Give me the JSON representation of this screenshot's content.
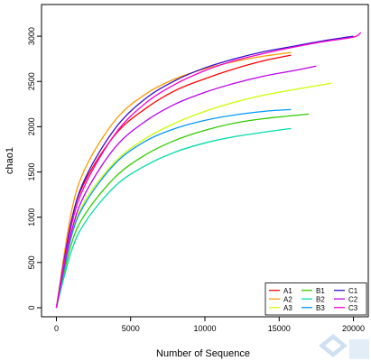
{
  "chart_data": {
    "type": "line",
    "title": "",
    "xlabel": "Number of Sequence",
    "ylabel": "chao1",
    "xlim": [
      -1000,
      21000
    ],
    "ylim": [
      -100,
      3350
    ],
    "xticks": [
      0,
      5000,
      10000,
      15000,
      20000
    ],
    "yticks": [
      0,
      500,
      1000,
      1500,
      2000,
      2500,
      3000
    ],
    "grid": false,
    "legend_position": "bottom-right",
    "legend_columns": 3,
    "series": [
      {
        "name": "A1",
        "color": "#ff0000",
        "points": [
          [
            0,
            0
          ],
          [
            1000,
            950
          ],
          [
            2000,
            1420
          ],
          [
            4000,
            1920
          ],
          [
            6000,
            2200
          ],
          [
            8000,
            2400
          ],
          [
            10000,
            2530
          ],
          [
            12000,
            2640
          ],
          [
            14000,
            2730
          ],
          [
            15800,
            2790
          ]
        ]
      },
      {
        "name": "A2",
        "color": "#ff9900",
        "points": [
          [
            0,
            0
          ],
          [
            1000,
            1050
          ],
          [
            2000,
            1560
          ],
          [
            4000,
            2080
          ],
          [
            6000,
            2360
          ],
          [
            8000,
            2530
          ],
          [
            10000,
            2640
          ],
          [
            12000,
            2720
          ],
          [
            14000,
            2780
          ],
          [
            15800,
            2820
          ]
        ]
      },
      {
        "name": "A3",
        "color": "#ccff00",
        "points": [
          [
            0,
            0
          ],
          [
            1000,
            800
          ],
          [
            2000,
            1200
          ],
          [
            4000,
            1620
          ],
          [
            6000,
            1870
          ],
          [
            8000,
            2040
          ],
          [
            10000,
            2170
          ],
          [
            12000,
            2270
          ],
          [
            14000,
            2350
          ],
          [
            16000,
            2410
          ],
          [
            18500,
            2480
          ]
        ]
      },
      {
        "name": "B1",
        "color": "#33cc00",
        "points": [
          [
            0,
            0
          ],
          [
            1000,
            700
          ],
          [
            2000,
            1050
          ],
          [
            4000,
            1450
          ],
          [
            6000,
            1690
          ],
          [
            8000,
            1850
          ],
          [
            10000,
            1960
          ],
          [
            12000,
            2040
          ],
          [
            14000,
            2090
          ],
          [
            17000,
            2140
          ]
        ]
      },
      {
        "name": "B2",
        "color": "#00ddaa",
        "points": [
          [
            0,
            0
          ],
          [
            1000,
            620
          ],
          [
            2000,
            960
          ],
          [
            4000,
            1350
          ],
          [
            6000,
            1570
          ],
          [
            8000,
            1720
          ],
          [
            10000,
            1820
          ],
          [
            12000,
            1890
          ],
          [
            14000,
            1940
          ],
          [
            15800,
            1980
          ]
        ]
      },
      {
        "name": "B3",
        "color": "#0099ff",
        "points": [
          [
            0,
            0
          ],
          [
            1000,
            780
          ],
          [
            2000,
            1170
          ],
          [
            4000,
            1600
          ],
          [
            6000,
            1840
          ],
          [
            8000,
            1980
          ],
          [
            10000,
            2070
          ],
          [
            12000,
            2130
          ],
          [
            14000,
            2170
          ],
          [
            15800,
            2190
          ]
        ]
      },
      {
        "name": "C1",
        "color": "#3311cc",
        "points": [
          [
            0,
            0
          ],
          [
            1000,
            950
          ],
          [
            2000,
            1450
          ],
          [
            4000,
            1990
          ],
          [
            6000,
            2310
          ],
          [
            8000,
            2510
          ],
          [
            10000,
            2650
          ],
          [
            12000,
            2750
          ],
          [
            14000,
            2830
          ],
          [
            16000,
            2890
          ],
          [
            18000,
            2950
          ],
          [
            20000,
            3000
          ]
        ]
      },
      {
        "name": "C2",
        "color": "#bb00ee",
        "points": [
          [
            0,
            0
          ],
          [
            1000,
            830
          ],
          [
            2000,
            1280
          ],
          [
            4000,
            1780
          ],
          [
            6000,
            2060
          ],
          [
            8000,
            2250
          ],
          [
            10000,
            2380
          ],
          [
            12000,
            2480
          ],
          [
            14000,
            2560
          ],
          [
            16000,
            2620
          ],
          [
            17500,
            2670
          ]
        ]
      },
      {
        "name": "C3",
        "color": "#ff00cc",
        "points": [
          [
            0,
            0
          ],
          [
            1000,
            900
          ],
          [
            2000,
            1380
          ],
          [
            4000,
            1930
          ],
          [
            6000,
            2260
          ],
          [
            8000,
            2470
          ],
          [
            10000,
            2620
          ],
          [
            12000,
            2730
          ],
          [
            14000,
            2810
          ],
          [
            16000,
            2880
          ],
          [
            18000,
            2940
          ],
          [
            20000,
            2990
          ],
          [
            20500,
            3040
          ]
        ]
      }
    ]
  }
}
